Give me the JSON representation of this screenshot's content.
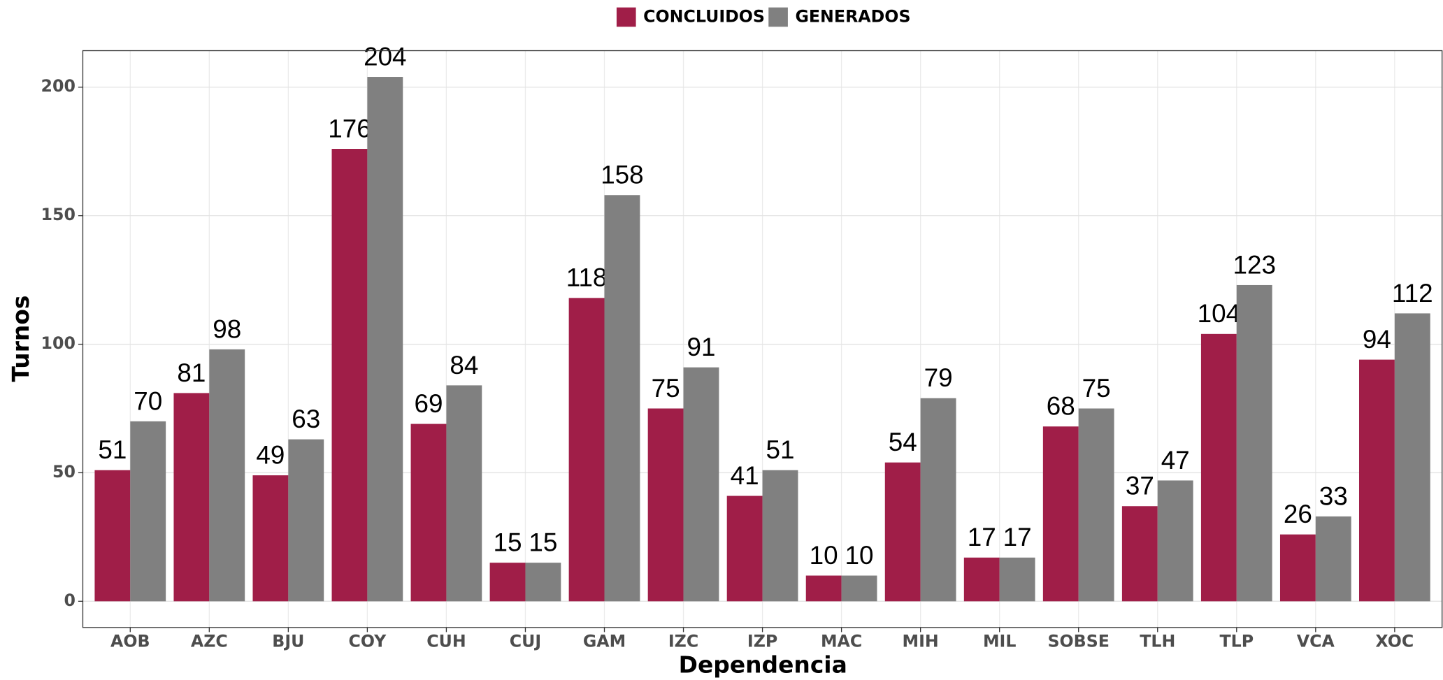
{
  "chart_data": {
    "type": "bar",
    "x_label": "Dependencia",
    "y_label": "Turnos",
    "categories": [
      "AOB",
      "AZC",
      "BJU",
      "COY",
      "CUH",
      "CUJ",
      "GAM",
      "IZC",
      "IZP",
      "MAC",
      "MIH",
      "MIL",
      "SOBSE",
      "TLH",
      "TLP",
      "VCA",
      "XOC"
    ],
    "series": [
      {
        "name": "CONCLUIDOS",
        "color": "#a01e48",
        "values": [
          51,
          81,
          49,
          176,
          69,
          15,
          118,
          75,
          41,
          10,
          54,
          17,
          68,
          37,
          104,
          26,
          94
        ]
      },
      {
        "name": "GENERADOS",
        "color": "#808080",
        "values": [
          70,
          98,
          63,
          204,
          84,
          15,
          158,
          91,
          51,
          10,
          79,
          17,
          75,
          47,
          123,
          33,
          112
        ]
      }
    ],
    "ylim": [
      -10.2,
      214.2
    ],
    "yticks": [
      0,
      50,
      100,
      150,
      200
    ],
    "grid": true,
    "legend": "top"
  }
}
